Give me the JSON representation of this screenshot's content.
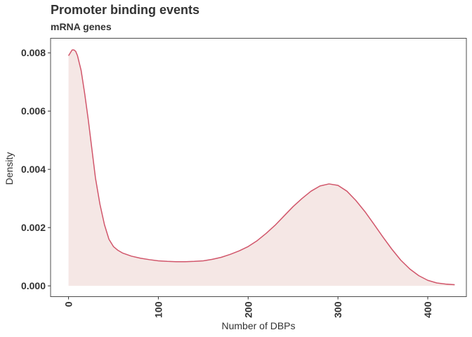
{
  "chart_data": {
    "type": "area",
    "title": "Promoter binding events",
    "subtitle": "mRNA genes",
    "xlabel": "Number of DBPs",
    "ylabel": "Density",
    "xlim": [
      -20,
      443
    ],
    "ylim": [
      -0.00037,
      0.0085
    ],
    "x_ticks": [
      0,
      100,
      200,
      300,
      400
    ],
    "x_tick_labels": [
      "0",
      "100",
      "200",
      "300",
      "400"
    ],
    "y_ticks": [
      0,
      0.002,
      0.004,
      0.006,
      0.008
    ],
    "y_tick_labels": [
      "0.000",
      "0.002",
      "0.004",
      "0.006",
      "0.008"
    ],
    "grid": false,
    "fill_color": "#f5e7e5",
    "line_color": "#d1566b",
    "series": [
      {
        "name": "mRNA genes",
        "x": [
          0,
          2,
          4,
          6,
          8,
          10,
          14,
          18,
          22,
          26,
          30,
          35,
          40,
          45,
          50,
          55,
          60,
          70,
          80,
          90,
          100,
          110,
          120,
          130,
          140,
          150,
          160,
          170,
          180,
          190,
          200,
          210,
          220,
          230,
          240,
          250,
          260,
          270,
          280,
          290,
          300,
          310,
          320,
          330,
          340,
          350,
          360,
          370,
          380,
          390,
          400,
          410,
          420,
          430
        ],
        "y": [
          0.0079,
          0.008,
          0.0081,
          0.0081,
          0.00805,
          0.0079,
          0.0074,
          0.0066,
          0.0057,
          0.0047,
          0.0037,
          0.0028,
          0.0021,
          0.0016,
          0.00135,
          0.00122,
          0.00113,
          0.00102,
          0.00095,
          0.0009,
          0.00086,
          0.00084,
          0.00083,
          0.00083,
          0.00084,
          0.00086,
          0.00091,
          0.00098,
          0.00108,
          0.0012,
          0.00135,
          0.00155,
          0.0018,
          0.00208,
          0.0024,
          0.00272,
          0.003,
          0.00325,
          0.00343,
          0.0035,
          0.00345,
          0.00325,
          0.00293,
          0.00255,
          0.00212,
          0.00168,
          0.00126,
          0.00088,
          0.00058,
          0.00035,
          0.00019,
          0.0001,
          6e-05,
          4e-05
        ]
      }
    ]
  }
}
